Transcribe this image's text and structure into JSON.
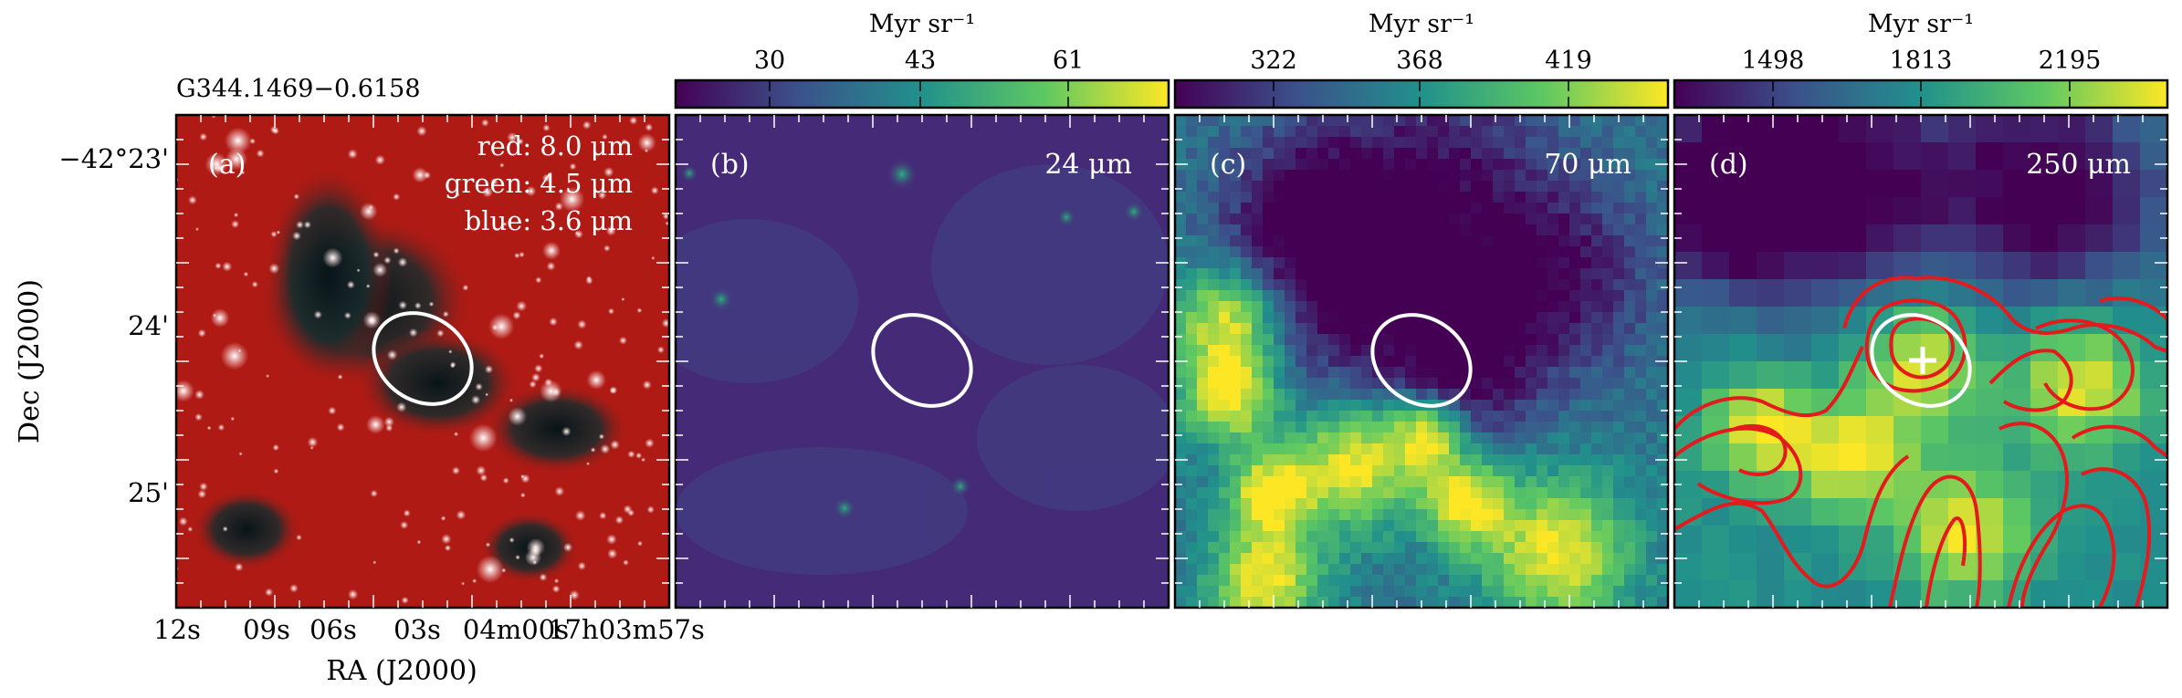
{
  "figure": {
    "source_title": "G344.1469−0.6158",
    "ylabel": "Dec (J2000)",
    "xlabel": "RA (J2000)",
    "dec_ticks": [
      "−42°23'",
      "24'",
      "25'"
    ],
    "ra_ticks": [
      "12s",
      "09s",
      "06s",
      "03s",
      "04m00s",
      "17h03m57s"
    ]
  },
  "panels": [
    {
      "label": "(a)",
      "legend": [
        "red: 8.0 μm",
        "green: 4.5 μm",
        "blue: 3.6 μm"
      ],
      "colors": {
        "background": "#b01a14",
        "dark": "#0d1f25"
      }
    },
    {
      "label": "(b)",
      "band": "24 μm",
      "colorbar": {
        "unit": "Myr sr⁻¹",
        "ticks": [
          "30",
          "43",
          "61"
        ]
      },
      "colors": {
        "background": "#452a78",
        "source": "#21918c"
      }
    },
    {
      "label": "(c)",
      "band": "70 μm",
      "colorbar": {
        "unit": "Myr sr⁻¹",
        "ticks": [
          "322",
          "368",
          "419"
        ]
      },
      "colors": {
        "low": "#440154",
        "mid": "#2a788e",
        "high": "#fde725"
      }
    },
    {
      "label": "(d)",
      "band": "250 μm",
      "colorbar": {
        "unit": "Myr sr⁻¹",
        "ticks": [
          "1498",
          "1813",
          "2195"
        ]
      },
      "colors": {
        "low": "#440154",
        "mid": "#22a884",
        "high": "#fde725",
        "contour": "#e41a1c",
        "marker": "#ffffff"
      }
    }
  ],
  "colormap": [
    "#440154",
    "#3b528b",
    "#21918c",
    "#5ec962",
    "#fde725"
  ]
}
